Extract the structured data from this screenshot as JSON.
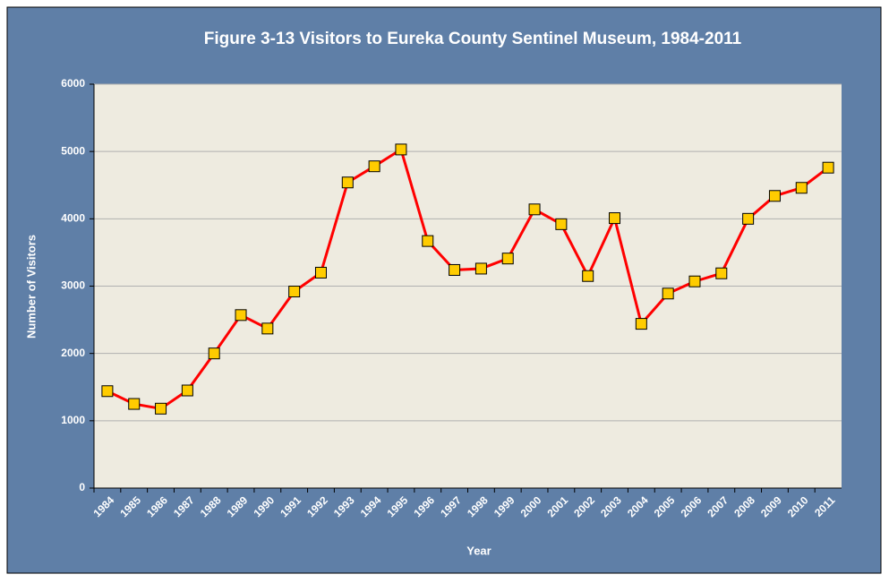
{
  "chart_data": {
    "type": "line",
    "title": "Figure 3-13 Visitors to Eureka County Sentinel Museum, 1984-2011",
    "x_label": "Year",
    "y_label": "Number of Visitors",
    "categories": [
      "1984",
      "1985",
      "1986",
      "1987",
      "1988",
      "1989",
      "1990",
      "1991",
      "1992",
      "1993",
      "1994",
      "1995",
      "1996",
      "1997",
      "1998",
      "1999",
      "2000",
      "2001",
      "2002",
      "2003",
      "2004",
      "2005",
      "2006",
      "2007",
      "2008",
      "2009",
      "2010",
      "2011"
    ],
    "series": [
      {
        "name": "Visitors",
        "color": "#ff0000",
        "marker_color": "#ffcc00",
        "values": [
          1440,
          1250,
          1180,
          1450,
          2000,
          2570,
          2370,
          2920,
          3200,
          4540,
          4780,
          5030,
          3670,
          3240,
          3260,
          3410,
          4140,
          3920,
          3150,
          4010,
          2440,
          2890,
          3070,
          3190,
          4000,
          4340,
          4460,
          4760
        ]
      }
    ],
    "ylim": [
      0,
      6000
    ],
    "yticks": [
      0,
      1000,
      2000,
      3000,
      4000,
      5000,
      6000
    ],
    "grid": true
  }
}
